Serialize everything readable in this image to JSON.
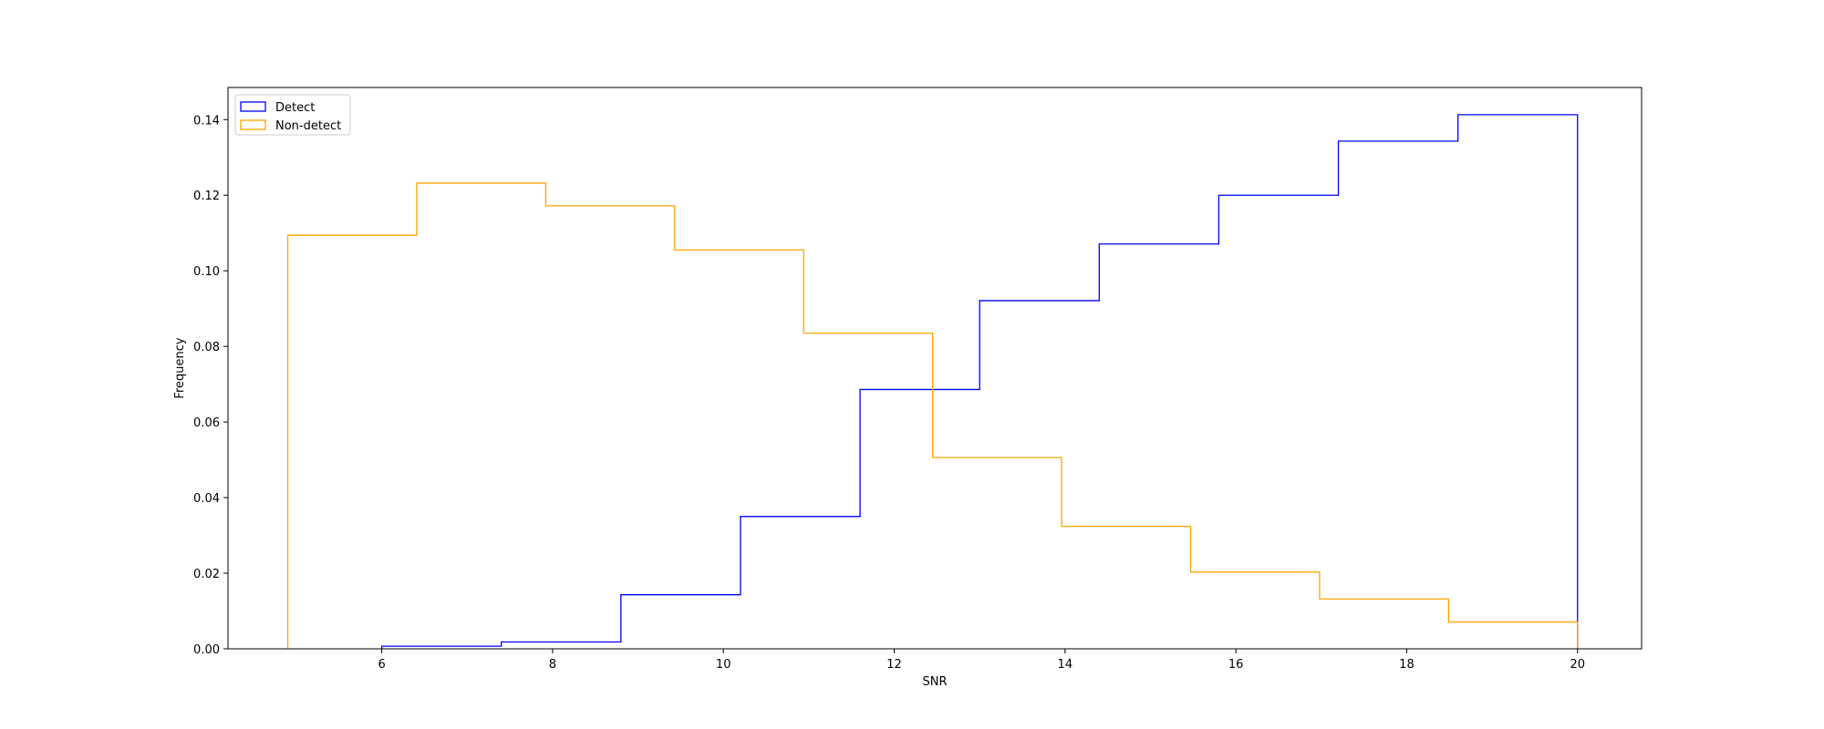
{
  "chart_data": {
    "type": "histogram-step",
    "xlabel": "SNR",
    "ylabel": "Frequency",
    "xlim": [
      4.2,
      20.75
    ],
    "ylim": [
      0.0,
      0.1485
    ],
    "xticks": [
      6,
      8,
      10,
      12,
      14,
      16,
      18,
      20
    ],
    "xtick_labels": [
      "6",
      "8",
      "10",
      "12",
      "14",
      "16",
      "18",
      "20"
    ],
    "yticks": [
      0.0,
      0.02,
      0.04,
      0.06,
      0.08,
      0.1,
      0.12,
      0.14
    ],
    "ytick_labels": [
      "0.00",
      "0.02",
      "0.04",
      "0.06",
      "0.08",
      "0.10",
      "0.12",
      "0.14"
    ],
    "grid": false,
    "legend_position": "top-left",
    "series": [
      {
        "name": "Detect",
        "color": "#0000ff",
        "bin_edges": [
          6.0,
          7.4,
          8.8,
          10.2,
          11.6,
          13.0,
          14.4,
          15.8,
          17.2,
          18.6,
          20.0
        ],
        "values": [
          0.0007,
          0.0018,
          0.0143,
          0.035,
          0.0686,
          0.0921,
          0.1071,
          0.12,
          0.1343,
          0.1413
        ]
      },
      {
        "name": "Non-detect",
        "color": "#ffa500",
        "bin_edges": [
          4.9,
          6.41,
          7.92,
          9.43,
          10.94,
          12.45,
          13.96,
          15.47,
          16.98,
          18.49,
          20.0
        ],
        "values": [
          0.1094,
          0.1232,
          0.1172,
          0.1055,
          0.0835,
          0.0506,
          0.0324,
          0.0203,
          0.0132,
          0.0071
        ]
      }
    ]
  }
}
